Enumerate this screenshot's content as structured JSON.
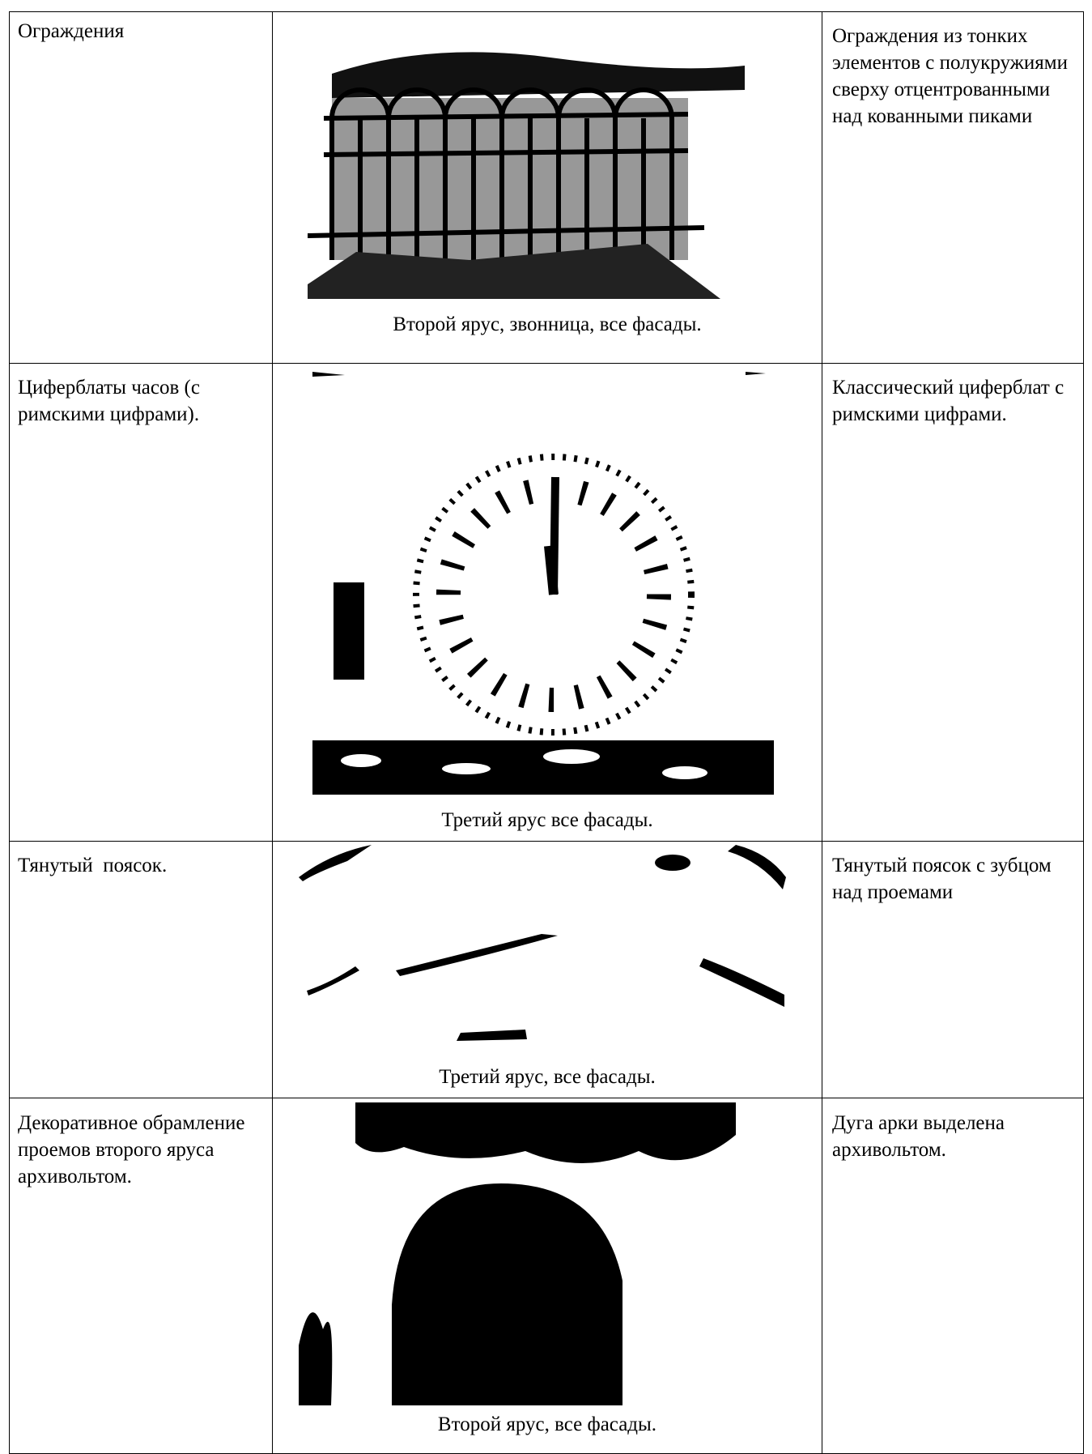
{
  "table": {
    "rows": [
      [
        "Ограждения",
        "Второй ярус, звонница, все фасады.",
        "Ограждения из тонких элементов с полукружиями сверху отцентрованными над кованными пиками"
      ],
      [
        "Циферблаты часов (с римскими цифрами).",
        "Третий ярус все фасады.",
        "Классический циферблат с римскими цифрами."
      ],
      [
        "Тянутый  поясок.",
        "Третий ярус, все фасады.",
        "Тянутый поясок с зубцом над проемами"
      ],
      [
        "Декоративное обрамление проемов второго яруса архивольтом.",
        "Второй ярус, все фасады.",
        "Дуга арки выделена архивольтом."
      ]
    ]
  }
}
